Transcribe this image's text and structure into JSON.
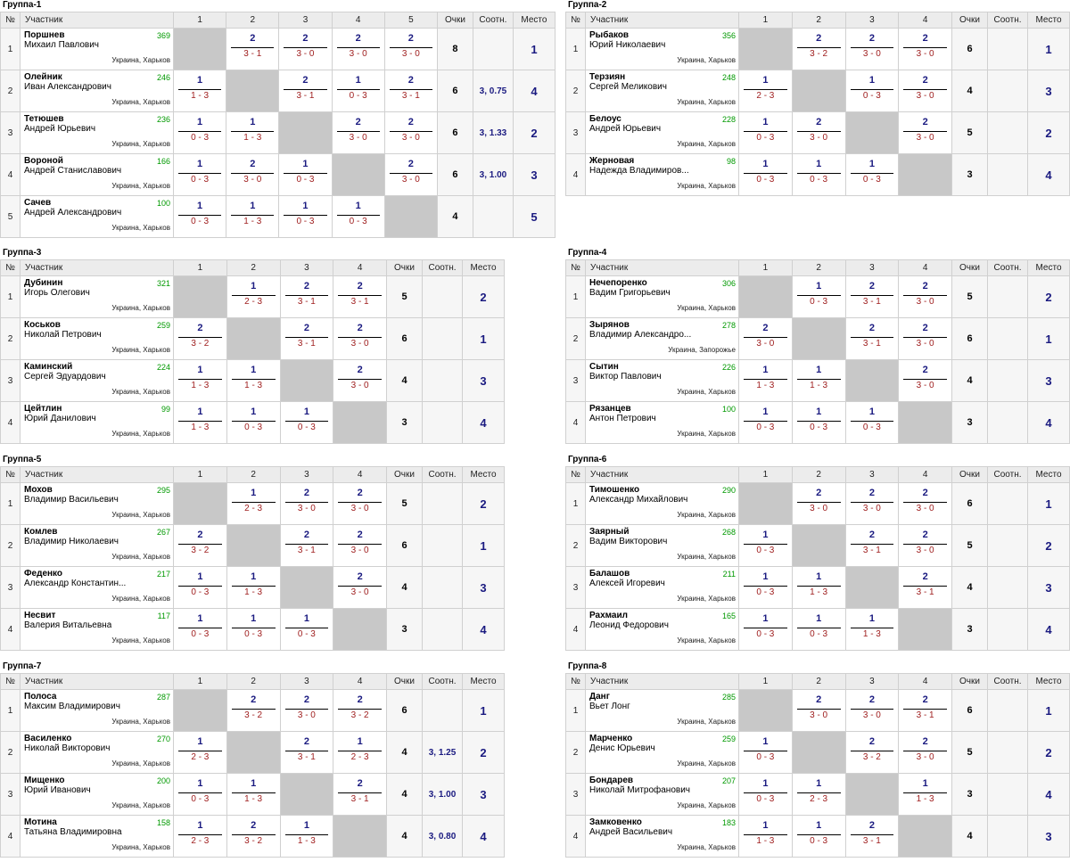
{
  "headers": {
    "no": "№",
    "participant": "Участник",
    "points": "Очки",
    "ratio": "Соотн.",
    "place": "Место"
  },
  "groups": [
    {
      "title": "Группа-1",
      "players": [
        {
          "no": "1",
          "surname": "Поршнев",
          "firstname": "Михаил Павлович",
          "rating": "369",
          "city": "Украина, Харьков",
          "scores": [
            null,
            [
              "2",
              "3 - 1"
            ],
            [
              "2",
              "3 - 0"
            ],
            [
              "2",
              "3 - 0"
            ],
            [
              "2",
              "3 - 0"
            ]
          ],
          "points": "8",
          "ratio": "",
          "place": "1"
        },
        {
          "no": "2",
          "surname": "Олейник",
          "firstname": "Иван Александрович",
          "rating": "246",
          "city": "Украина, Харьков",
          "scores": [
            [
              "1",
              "1 - 3"
            ],
            null,
            [
              "2",
              "3 - 1"
            ],
            [
              "1",
              "0 - 3"
            ],
            [
              "2",
              "3 - 1"
            ]
          ],
          "points": "6",
          "ratio": "3, 0.75",
          "place": "4"
        },
        {
          "no": "3",
          "surname": "Тетюшев",
          "firstname": "Андрей Юрьевич",
          "rating": "236",
          "city": "Украина, Харьков",
          "scores": [
            [
              "1",
              "0 - 3"
            ],
            [
              "1",
              "1 - 3"
            ],
            null,
            [
              "2",
              "3 - 0"
            ],
            [
              "2",
              "3 - 0"
            ]
          ],
          "points": "6",
          "ratio": "3, 1.33",
          "place": "2"
        },
        {
          "no": "4",
          "surname": "Вороной",
          "firstname": "Андрей Станиславович",
          "rating": "166",
          "city": "Украина, Харьков",
          "scores": [
            [
              "1",
              "0 - 3"
            ],
            [
              "2",
              "3 - 0"
            ],
            [
              "1",
              "0 - 3"
            ],
            null,
            [
              "2",
              "3 - 0"
            ]
          ],
          "points": "6",
          "ratio": "3, 1.00",
          "place": "3"
        },
        {
          "no": "5",
          "surname": "Сачев",
          "firstname": "Андрей Александрович",
          "rating": "100",
          "city": "Украина, Харьков",
          "scores": [
            [
              "1",
              "0 - 3"
            ],
            [
              "1",
              "1 - 3"
            ],
            [
              "1",
              "0 - 3"
            ],
            [
              "1",
              "0 - 3"
            ],
            null
          ],
          "points": "4",
          "ratio": "",
          "place": "5"
        }
      ]
    },
    {
      "title": "Группа-2",
      "players": [
        {
          "no": "1",
          "surname": "Рыбаков",
          "firstname": "Юрий Николаевич",
          "rating": "356",
          "city": "Украина, Харьков",
          "scores": [
            null,
            [
              "2",
              "3 - 2"
            ],
            [
              "2",
              "3 - 0"
            ],
            [
              "2",
              "3 - 0"
            ]
          ],
          "points": "6",
          "ratio": "",
          "place": "1"
        },
        {
          "no": "2",
          "surname": "Терзиян",
          "firstname": "Сергей Меликович",
          "rating": "248",
          "city": "Украина, Харьков",
          "scores": [
            [
              "1",
              "2 - 3"
            ],
            null,
            [
              "1",
              "0 - 3"
            ],
            [
              "2",
              "3 - 0"
            ]
          ],
          "points": "4",
          "ratio": "",
          "place": "3"
        },
        {
          "no": "3",
          "surname": "Белоус",
          "firstname": "Андрей Юрьевич",
          "rating": "228",
          "city": "Украина, Харьков",
          "scores": [
            [
              "1",
              "0 - 3"
            ],
            [
              "2",
              "3 - 0"
            ],
            null,
            [
              "2",
              "3 - 0"
            ]
          ],
          "points": "5",
          "ratio": "",
          "place": "2"
        },
        {
          "no": "4",
          "surname": "Жерновая",
          "firstname": "Надежда Владимиров...",
          "rating": "98",
          "city": "Украина, Харьков",
          "scores": [
            [
              "1",
              "0 - 3"
            ],
            [
              "1",
              "0 - 3"
            ],
            [
              "1",
              "0 - 3"
            ],
            null
          ],
          "points": "3",
          "ratio": "",
          "place": "4"
        }
      ]
    },
    {
      "title": "Группа-3",
      "players": [
        {
          "no": "1",
          "surname": "Дубинин",
          "firstname": "Игорь Олегович",
          "rating": "321",
          "city": "Украина, Харьков",
          "scores": [
            null,
            [
              "1",
              "2 - 3"
            ],
            [
              "2",
              "3 - 1"
            ],
            [
              "2",
              "3 - 1"
            ]
          ],
          "points": "5",
          "ratio": "",
          "place": "2"
        },
        {
          "no": "2",
          "surname": "Коськов",
          "firstname": "Николай Петрович",
          "rating": "259",
          "city": "Украина, Харьков",
          "scores": [
            [
              "2",
              "3 - 2"
            ],
            null,
            [
              "2",
              "3 - 1"
            ],
            [
              "2",
              "3 - 0"
            ]
          ],
          "points": "6",
          "ratio": "",
          "place": "1"
        },
        {
          "no": "3",
          "surname": "Каминский",
          "firstname": "Сергей Эдуардович",
          "rating": "224",
          "city": "Украина, Харьков",
          "scores": [
            [
              "1",
              "1 - 3"
            ],
            [
              "1",
              "1 - 3"
            ],
            null,
            [
              "2",
              "3 - 0"
            ]
          ],
          "points": "4",
          "ratio": "",
          "place": "3"
        },
        {
          "no": "4",
          "surname": "Цейтлин",
          "firstname": "Юрий Данилович",
          "rating": "99",
          "city": "Украина, Харьков",
          "scores": [
            [
              "1",
              "1 - 3"
            ],
            [
              "1",
              "0 - 3"
            ],
            [
              "1",
              "0 - 3"
            ],
            null
          ],
          "points": "3",
          "ratio": "",
          "place": "4"
        }
      ]
    },
    {
      "title": "Группа-4",
      "players": [
        {
          "no": "1",
          "surname": "Нечепоренко",
          "firstname": "Вадим Григорьевич",
          "rating": "306",
          "city": "Украина, Харьков",
          "scores": [
            null,
            [
              "1",
              "0 - 3"
            ],
            [
              "2",
              "3 - 1"
            ],
            [
              "2",
              "3 - 0"
            ]
          ],
          "points": "5",
          "ratio": "",
          "place": "2"
        },
        {
          "no": "2",
          "surname": "Зырянов",
          "firstname": "Владимир Александро...",
          "rating": "278",
          "city": "Украина, Запорожье",
          "scores": [
            [
              "2",
              "3 - 0"
            ],
            null,
            [
              "2",
              "3 - 1"
            ],
            [
              "2",
              "3 - 0"
            ]
          ],
          "points": "6",
          "ratio": "",
          "place": "1"
        },
        {
          "no": "3",
          "surname": "Сытин",
          "firstname": "Виктор Павлович",
          "rating": "226",
          "city": "Украина, Харьков",
          "scores": [
            [
              "1",
              "1 - 3"
            ],
            [
              "1",
              "1 - 3"
            ],
            null,
            [
              "2",
              "3 - 0"
            ]
          ],
          "points": "4",
          "ratio": "",
          "place": "3"
        },
        {
          "no": "4",
          "surname": "Рязанцев",
          "firstname": "Антон Петрович",
          "rating": "100",
          "city": "Украина, Харьков",
          "scores": [
            [
              "1",
              "0 - 3"
            ],
            [
              "1",
              "0 - 3"
            ],
            [
              "1",
              "0 - 3"
            ],
            null
          ],
          "points": "3",
          "ratio": "",
          "place": "4"
        }
      ]
    },
    {
      "title": "Группа-5",
      "players": [
        {
          "no": "1",
          "surname": "Мохов",
          "firstname": "Владимир Васильевич",
          "rating": "295",
          "city": "Украина, Харьков",
          "scores": [
            null,
            [
              "1",
              "2 - 3"
            ],
            [
              "2",
              "3 - 0"
            ],
            [
              "2",
              "3 - 0"
            ]
          ],
          "points": "5",
          "ratio": "",
          "place": "2"
        },
        {
          "no": "2",
          "surname": "Комлев",
          "firstname": "Владимир Николаевич",
          "rating": "267",
          "city": "Украина, Харьков",
          "scores": [
            [
              "2",
              "3 - 2"
            ],
            null,
            [
              "2",
              "3 - 1"
            ],
            [
              "2",
              "3 - 0"
            ]
          ],
          "points": "6",
          "ratio": "",
          "place": "1"
        },
        {
          "no": "3",
          "surname": "Феденко",
          "firstname": "Александр Константин...",
          "rating": "217",
          "city": "Украина, Харьков",
          "scores": [
            [
              "1",
              "0 - 3"
            ],
            [
              "1",
              "1 - 3"
            ],
            null,
            [
              "2",
              "3 - 0"
            ]
          ],
          "points": "4",
          "ratio": "",
          "place": "3"
        },
        {
          "no": "4",
          "surname": "Несвит",
          "firstname": "Валерия Витальевна",
          "rating": "117",
          "city": "Украина, Харьков",
          "scores": [
            [
              "1",
              "0 - 3"
            ],
            [
              "1",
              "0 - 3"
            ],
            [
              "1",
              "0 - 3"
            ],
            null
          ],
          "points": "3",
          "ratio": "",
          "place": "4"
        }
      ]
    },
    {
      "title": "Группа-6",
      "players": [
        {
          "no": "1",
          "surname": "Тимошенко",
          "firstname": "Александр Михайлович",
          "rating": "290",
          "city": "Украина, Харьков",
          "scores": [
            null,
            [
              "2",
              "3 - 0"
            ],
            [
              "2",
              "3 - 0"
            ],
            [
              "2",
              "3 - 0"
            ]
          ],
          "points": "6",
          "ratio": "",
          "place": "1"
        },
        {
          "no": "2",
          "surname": "Заярный",
          "firstname": "Вадим Викторович",
          "rating": "268",
          "city": "Украина, Харьков",
          "scores": [
            [
              "1",
              "0 - 3"
            ],
            null,
            [
              "2",
              "3 - 1"
            ],
            [
              "2",
              "3 - 0"
            ]
          ],
          "points": "5",
          "ratio": "",
          "place": "2"
        },
        {
          "no": "3",
          "surname": "Балашов",
          "firstname": "Алексей Игоревич",
          "rating": "211",
          "city": "Украина, Харьков",
          "scores": [
            [
              "1",
              "0 - 3"
            ],
            [
              "1",
              "1 - 3"
            ],
            null,
            [
              "2",
              "3 - 1"
            ]
          ],
          "points": "4",
          "ratio": "",
          "place": "3"
        },
        {
          "no": "4",
          "surname": "Рахмаил",
          "firstname": "Леонид Федорович",
          "rating": "165",
          "city": "Украина, Харьков",
          "scores": [
            [
              "1",
              "0 - 3"
            ],
            [
              "1",
              "0 - 3"
            ],
            [
              "1",
              "1 - 3"
            ],
            null
          ],
          "points": "3",
          "ratio": "",
          "place": "4"
        }
      ]
    },
    {
      "title": "Группа-7",
      "players": [
        {
          "no": "1",
          "surname": "Полоса",
          "firstname": "Максим Владимирович",
          "rating": "287",
          "city": "Украина, Харьков",
          "scores": [
            null,
            [
              "2",
              "3 - 2"
            ],
            [
              "2",
              "3 - 0"
            ],
            [
              "2",
              "3 - 2"
            ]
          ],
          "points": "6",
          "ratio": "",
          "place": "1"
        },
        {
          "no": "2",
          "surname": "Василенко",
          "firstname": "Николай Викторович",
          "rating": "270",
          "city": "Украина, Харьков",
          "scores": [
            [
              "1",
              "2 - 3"
            ],
            null,
            [
              "2",
              "3 - 1"
            ],
            [
              "1",
              "2 - 3"
            ]
          ],
          "points": "4",
          "ratio": "3, 1.25",
          "place": "2"
        },
        {
          "no": "3",
          "surname": "Мищенко",
          "firstname": "Юрий Иванович",
          "rating": "200",
          "city": "Украина, Харьков",
          "scores": [
            [
              "1",
              "0 - 3"
            ],
            [
              "1",
              "1 - 3"
            ],
            null,
            [
              "2",
              "3 - 1"
            ]
          ],
          "points": "4",
          "ratio": "3, 1.00",
          "place": "3"
        },
        {
          "no": "4",
          "surname": "Мотина",
          "firstname": "Татьяна Владимировна",
          "rating": "158",
          "city": "Украина, Харьков",
          "scores": [
            [
              "1",
              "2 - 3"
            ],
            [
              "2",
              "3 - 2"
            ],
            [
              "1",
              "1 - 3"
            ],
            null
          ],
          "points": "4",
          "ratio": "3, 0.80",
          "place": "4"
        }
      ]
    },
    {
      "title": "Группа-8",
      "players": [
        {
          "no": "1",
          "surname": "Данг",
          "firstname": "Вьет Лонг",
          "rating": "285",
          "city": "Украина, Харьков",
          "scores": [
            null,
            [
              "2",
              "3 - 0"
            ],
            [
              "2",
              "3 - 0"
            ],
            [
              "2",
              "3 - 1"
            ]
          ],
          "points": "6",
          "ratio": "",
          "place": "1"
        },
        {
          "no": "2",
          "surname": "Марченко",
          "firstname": "Денис Юрьевич",
          "rating": "259",
          "city": "Украина, Харьков",
          "scores": [
            [
              "1",
              "0 - 3"
            ],
            null,
            [
              "2",
              "3 - 2"
            ],
            [
              "2",
              "3 - 0"
            ]
          ],
          "points": "5",
          "ratio": "",
          "place": "2"
        },
        {
          "no": "3",
          "surname": "Бондарев",
          "firstname": "Николай Митрофанович",
          "rating": "207",
          "city": "Украина, Харьков",
          "scores": [
            [
              "1",
              "0 - 3"
            ],
            [
              "1",
              "2 - 3"
            ],
            null,
            [
              "1",
              "1 - 3"
            ]
          ],
          "points": "3",
          "ratio": "",
          "place": "4"
        },
        {
          "no": "4",
          "surname": "Замковенко",
          "firstname": "Андрей Васильевич",
          "rating": "183",
          "city": "Украина, Харьков",
          "scores": [
            [
              "1",
              "1 - 3"
            ],
            [
              "1",
              "0 - 3"
            ],
            [
              "2",
              "3 - 1"
            ],
            null
          ],
          "points": "4",
          "ratio": "",
          "place": "3"
        }
      ]
    }
  ]
}
